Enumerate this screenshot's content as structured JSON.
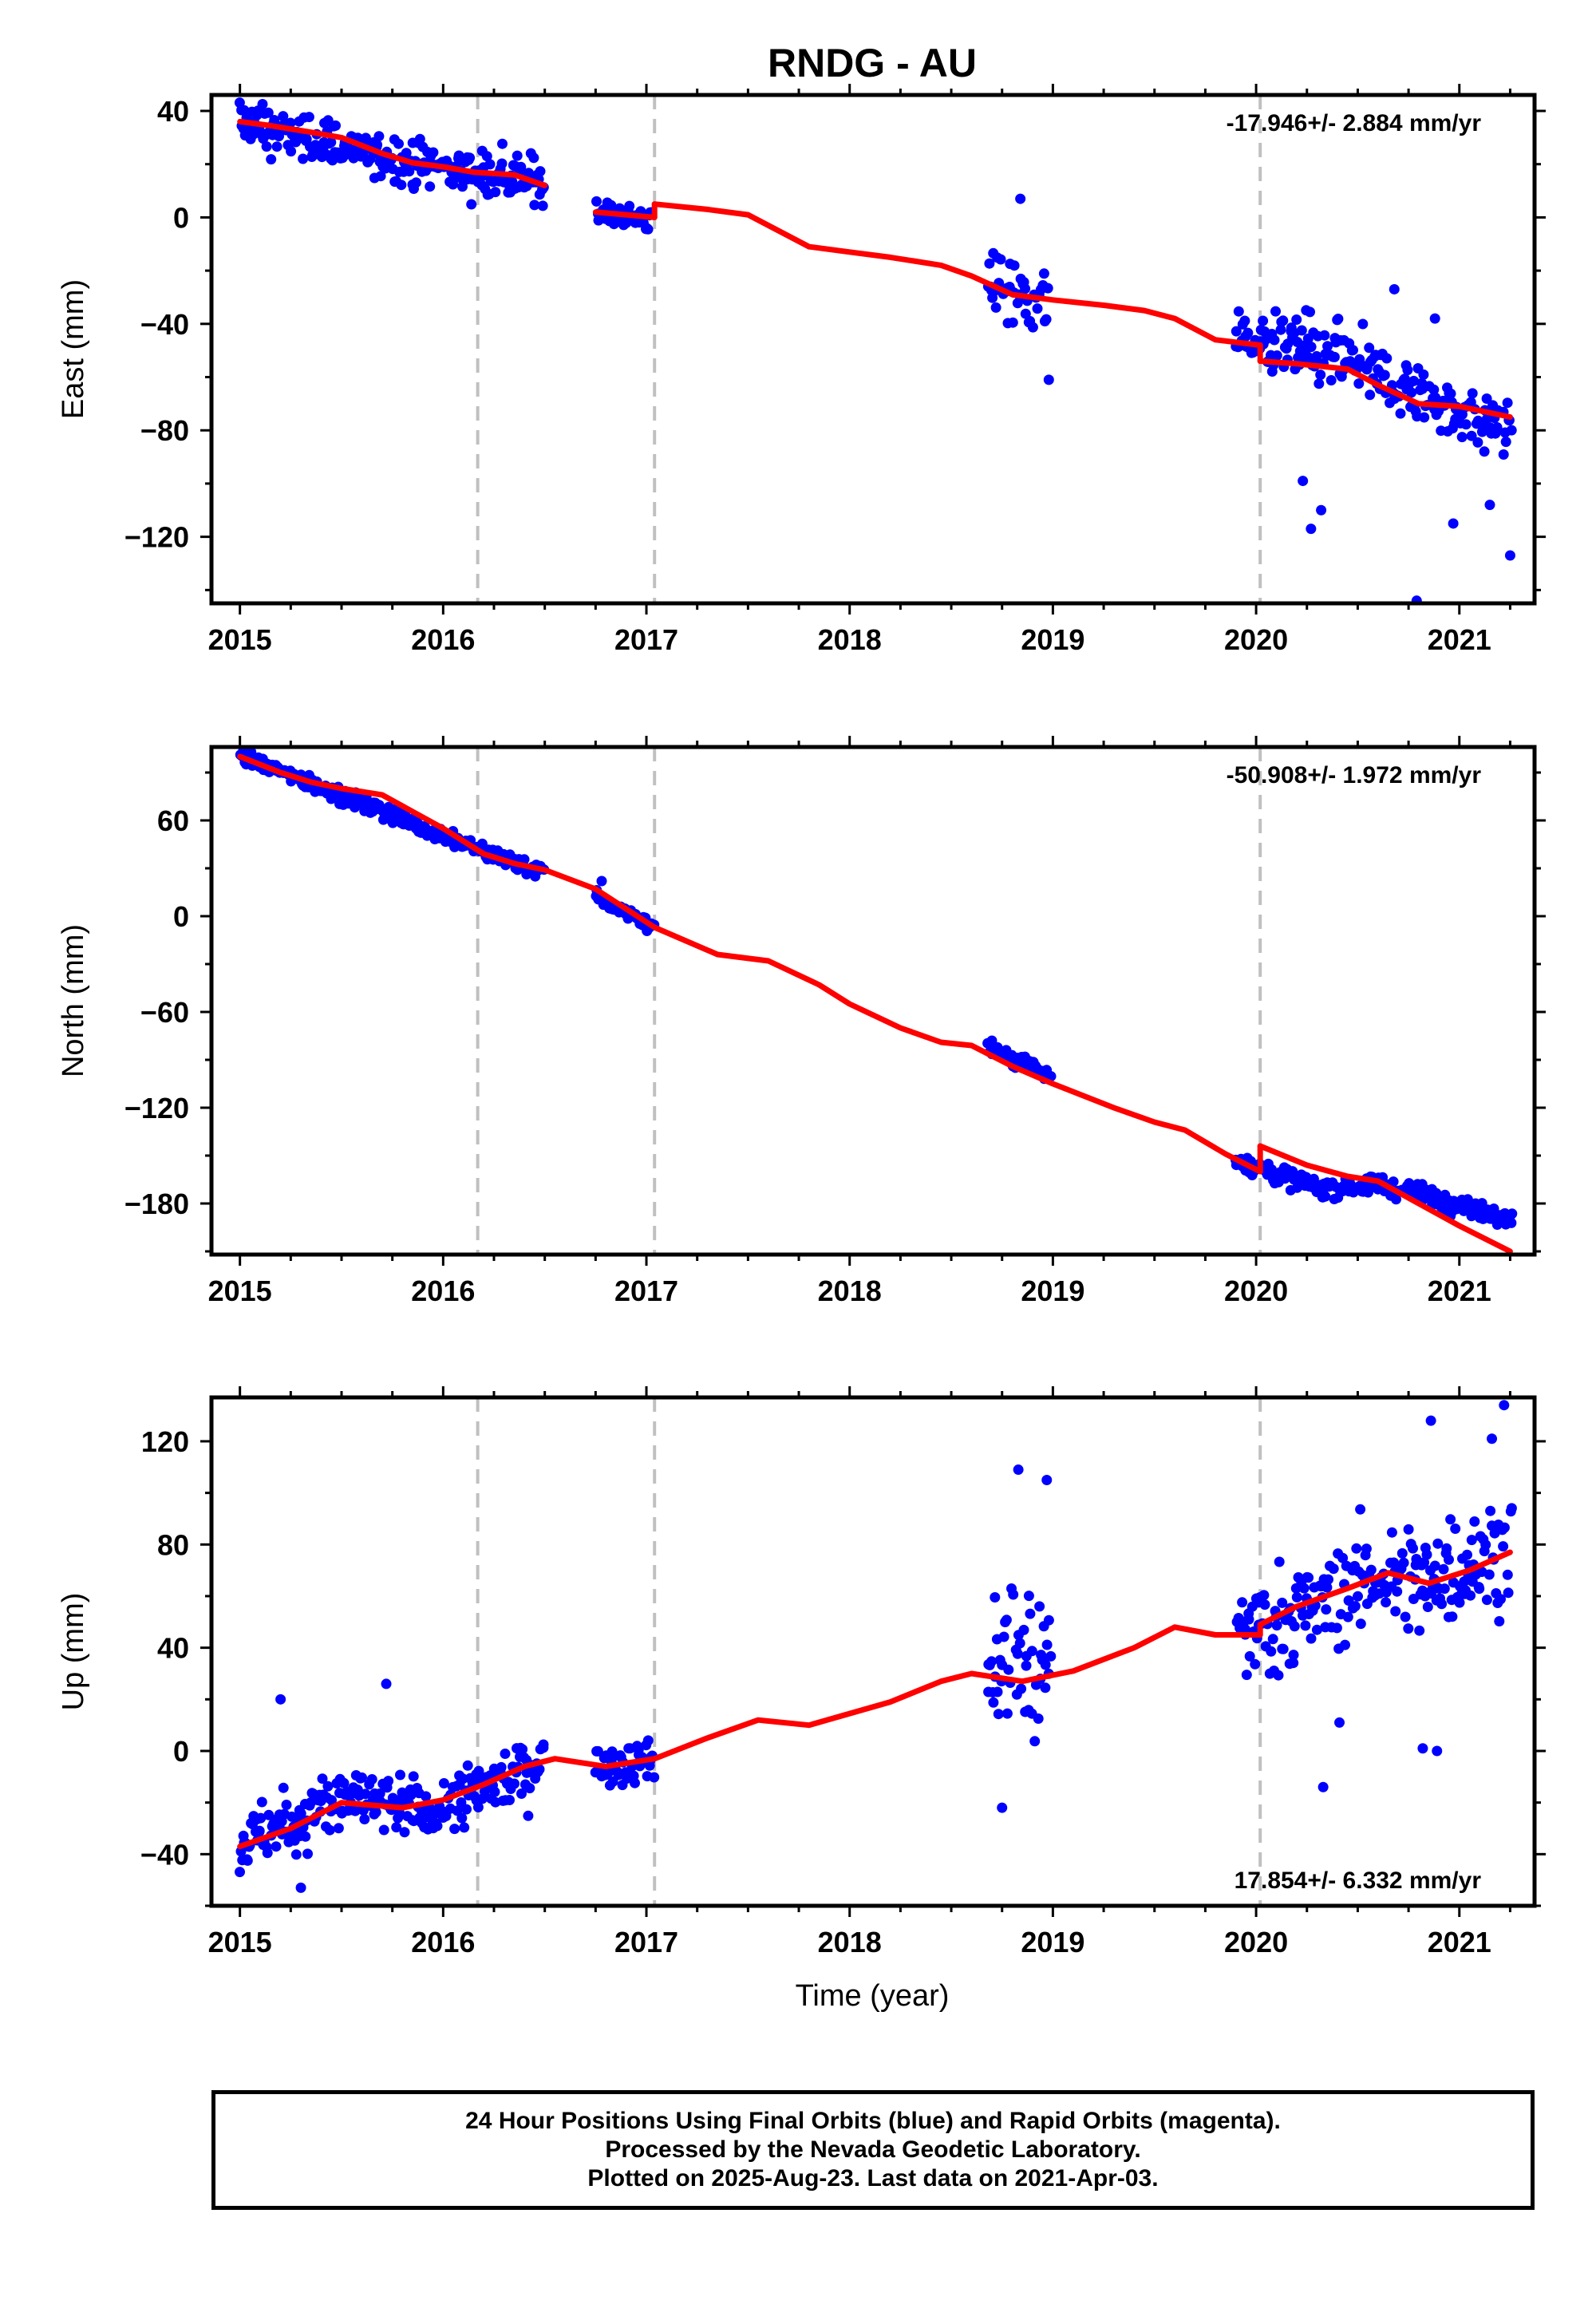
{
  "chart_data": {
    "type": "scatter",
    "title": "RNDG - AU",
    "xlabel": "Time (year)",
    "xlim": [
      2014.86,
      2021.37
    ],
    "x_ticks": [
      2015,
      2016,
      2017,
      2018,
      2019,
      2020,
      2021
    ],
    "offset_lines": [
      2016.17,
      2017.04,
      2020.02
    ],
    "colors": {
      "final": "#0000ff",
      "rapid": "#ff00ff",
      "model": "#ff0000",
      "offset": "#c0c0c0"
    },
    "panels": [
      {
        "name": "east",
        "ylabel": "East (mm)",
        "ylim": [
          -145,
          46
        ],
        "yticks": [
          40,
          0,
          -40,
          -80,
          -120
        ],
        "velocity_text": "-17.946+/- 2.884 mm/yr",
        "velocity_position": "top-right",
        "data_segments": [
          {
            "range": [
              2015.0,
              2016.5
            ],
            "values": [
              [
                2015.0,
                36
              ],
              [
                2015.5,
                26
              ],
              [
                2016.0,
                19
              ],
              [
                2016.5,
                13
              ]
            ],
            "spread": 7
          },
          {
            "range": [
              2016.75,
              2017.04
            ],
            "values": [
              [
                2016.75,
                2
              ],
              [
                2017.04,
                -1
              ]
            ],
            "spread": 4
          },
          {
            "range": [
              2018.68,
              2018.99
            ],
            "values": [
              [
                2018.68,
                -24
              ],
              [
                2018.99,
                -32
              ]
            ],
            "spread": 11
          },
          {
            "range": [
              2019.9,
              2021.26
            ],
            "values": [
              [
                2019.9,
                -46
              ],
              [
                2020.3,
                -50
              ],
              [
                2020.6,
                -60
              ],
              [
                2020.9,
                -70
              ],
              [
                2021.26,
                -82
              ]
            ],
            "spread": 10
          }
        ],
        "outliers": [
          [
            2018.84,
            7
          ],
          [
            2018.98,
            -61
          ],
          [
            2020.23,
            -99
          ],
          [
            2020.27,
            -117
          ],
          [
            2020.32,
            -110
          ],
          [
            2020.68,
            -27
          ],
          [
            2020.88,
            -38
          ],
          [
            2020.79,
            -144
          ],
          [
            2020.97,
            -115
          ],
          [
            2021.25,
            -127
          ],
          [
            2021.15,
            -108
          ]
        ],
        "model_segments": [
          [
            [
              2015.0,
              36
            ],
            [
              2015.15,
              34.5
            ],
            [
              2015.35,
              32
            ],
            [
              2015.5,
              30
            ],
            [
              2015.7,
              24
            ],
            [
              2015.85,
              20.5
            ],
            [
              2016.0,
              19
            ],
            [
              2016.15,
              17
            ],
            [
              2016.35,
              16
            ],
            [
              2016.5,
              12
            ]
          ],
          [
            [
              2016.75,
              2
            ],
            [
              2016.9,
              1
            ],
            [
              2017.04,
              0
            ]
          ],
          [
            [
              2017.04,
              5
            ],
            [
              2017.3,
              3
            ],
            [
              2017.5,
              1
            ],
            [
              2017.8,
              -11
            ],
            [
              2018.0,
              -13
            ],
            [
              2018.2,
              -15
            ],
            [
              2018.45,
              -18
            ],
            [
              2018.6,
              -22
            ],
            [
              2018.8,
              -29
            ],
            [
              2019.0,
              -31
            ],
            [
              2019.25,
              -33
            ],
            [
              2019.45,
              -35
            ],
            [
              2019.6,
              -38
            ],
            [
              2019.8,
              -46
            ],
            [
              2020.02,
              -48
            ]
          ],
          [
            [
              2020.02,
              -54
            ],
            [
              2020.2,
              -55
            ],
            [
              2020.45,
              -57
            ],
            [
              2020.6,
              -63
            ],
            [
              2020.8,
              -70
            ],
            [
              2021.0,
              -71
            ],
            [
              2021.25,
              -75
            ]
          ]
        ]
      },
      {
        "name": "north",
        "ylabel": "North (mm)",
        "ylim": [
          -212,
          106
        ],
        "yticks": [
          60,
          0,
          -60,
          -120,
          -180
        ],
        "velocity_text": "-50.908+/- 1.972 mm/yr",
        "velocity_position": "top-right",
        "data_segments": [
          {
            "range": [
              2015.0,
              2016.5
            ],
            "values": [
              [
                2015.0,
                100
              ],
              [
                2015.5,
                76
              ],
              [
                2016.0,
                50
              ],
              [
                2016.5,
                27
              ]
            ],
            "spread": 4
          },
          {
            "range": [
              2016.75,
              2017.04
            ],
            "values": [
              [
                2016.75,
                12
              ],
              [
                2017.04,
                -7
              ]
            ],
            "spread": 3
          },
          {
            "range": [
              2018.68,
              2018.99
            ],
            "values": [
              [
                2018.68,
                -82
              ],
              [
                2018.99,
                -100
              ]
            ],
            "spread": 4
          },
          {
            "range": [
              2019.9,
              2021.26
            ],
            "values": [
              [
                2019.9,
                -153
              ],
              [
                2020.3,
                -170
              ],
              [
                2020.6,
                -168
              ],
              [
                2021.0,
                -180
              ],
              [
                2021.26,
                -190
              ]
            ],
            "spread": 5
          }
        ],
        "outliers": [
          [
            2016.78,
            22
          ],
          [
            2018.7,
            -78
          ]
        ],
        "model_segments": [
          [
            [
              2015.0,
              100
            ],
            [
              2015.2,
              90
            ],
            [
              2015.35,
              84
            ],
            [
              2015.5,
              80
            ],
            [
              2015.7,
              76
            ],
            [
              2016.0,
              55
            ],
            [
              2016.2,
              39
            ],
            [
              2016.35,
              33
            ],
            [
              2016.5,
              29
            ],
            [
              2016.75,
              17
            ],
            [
              2017.04,
              -7
            ],
            [
              2017.35,
              -24
            ],
            [
              2017.6,
              -28
            ],
            [
              2017.85,
              -43
            ],
            [
              2018.0,
              -55
            ],
            [
              2018.25,
              -70
            ],
            [
              2018.45,
              -79
            ],
            [
              2018.6,
              -81
            ],
            [
              2018.8,
              -94
            ],
            [
              2019.0,
              -105
            ],
            [
              2019.3,
              -120
            ],
            [
              2019.5,
              -129
            ],
            [
              2019.65,
              -134
            ],
            [
              2019.85,
              -149
            ],
            [
              2020.02,
              -160
            ]
          ],
          [
            [
              2020.02,
              -144
            ],
            [
              2020.25,
              -156
            ],
            [
              2020.45,
              -163
            ],
            [
              2020.6,
              -166
            ],
            [
              2020.8,
              -180
            ],
            [
              2021.0,
              -194
            ],
            [
              2021.25,
              -210
            ]
          ]
        ]
      },
      {
        "name": "up",
        "ylabel": "Up (mm)",
        "ylim": [
          -60,
          137
        ],
        "yticks": [
          120,
          80,
          40,
          0,
          -40
        ],
        "velocity_text": "17.854+/- 6.332 mm/yr",
        "velocity_position": "bottom-right",
        "data_segments": [
          {
            "range": [
              2015.0,
              2016.5
            ],
            "values": [
              [
                2015.0,
                -35
              ],
              [
                2015.5,
                -20
              ],
              [
                2016.0,
                -22
              ],
              [
                2016.5,
                -3
              ]
            ],
            "spread": 10
          },
          {
            "range": [
              2016.75,
              2017.04
            ],
            "values": [
              [
                2016.75,
                -6
              ],
              [
                2017.04,
                -3
              ]
            ],
            "spread": 7
          },
          {
            "range": [
              2018.68,
              2018.99
            ],
            "values": [
              [
                2018.68,
                35
              ],
              [
                2018.99,
                30
              ]
            ],
            "spread": 25
          },
          {
            "range": [
              2019.9,
              2021.26
            ],
            "values": [
              [
                2019.9,
                45
              ],
              [
                2020.3,
                55
              ],
              [
                2020.6,
                70
              ],
              [
                2020.85,
                65
              ],
              [
                2021.26,
                80
              ]
            ],
            "spread": 17
          }
        ],
        "outliers": [
          [
            2015.2,
            20
          ],
          [
            2015.72,
            26
          ],
          [
            2015.3,
            -53
          ],
          [
            2018.83,
            109
          ],
          [
            2018.97,
            105
          ],
          [
            2018.75,
            -22
          ],
          [
            2020.33,
            -14
          ],
          [
            2020.41,
            11
          ],
          [
            2020.86,
            128
          ],
          [
            2020.82,
            1
          ],
          [
            2020.89,
            0
          ],
          [
            2021.22,
            134
          ],
          [
            2021.16,
            121
          ]
        ],
        "model_segments": [
          [
            [
              2015.0,
              -37
            ],
            [
              2015.25,
              -30
            ],
            [
              2015.5,
              -20
            ],
            [
              2015.8,
              -22
            ],
            [
              2016.0,
              -19
            ],
            [
              2016.2,
              -13
            ],
            [
              2016.4,
              -6
            ],
            [
              2016.55,
              -3
            ],
            [
              2016.8,
              -6
            ],
            [
              2017.04,
              -3
            ],
            [
              2017.3,
              5
            ],
            [
              2017.55,
              12
            ],
            [
              2017.8,
              10
            ],
            [
              2018.2,
              19
            ],
            [
              2018.45,
              27
            ],
            [
              2018.6,
              30
            ],
            [
              2018.85,
              27
            ],
            [
              2019.1,
              31
            ],
            [
              2019.4,
              40
            ],
            [
              2019.6,
              48
            ],
            [
              2019.8,
              45
            ],
            [
              2020.02,
              45
            ]
          ],
          [
            [
              2020.02,
              49
            ],
            [
              2020.2,
              56
            ],
            [
              2020.45,
              63
            ],
            [
              2020.65,
              69
            ],
            [
              2020.85,
              65
            ],
            [
              2021.05,
              70
            ],
            [
              2021.25,
              77
            ]
          ]
        ]
      }
    ]
  },
  "footer": {
    "line1": "24 Hour Positions Using Final Orbits (blue) and Rapid Orbits (magenta).",
    "line2": "Processed by the Nevada Geodetic Laboratory.",
    "line3": "Plotted on 2025-Aug-23. Last data on 2021-Apr-03."
  }
}
